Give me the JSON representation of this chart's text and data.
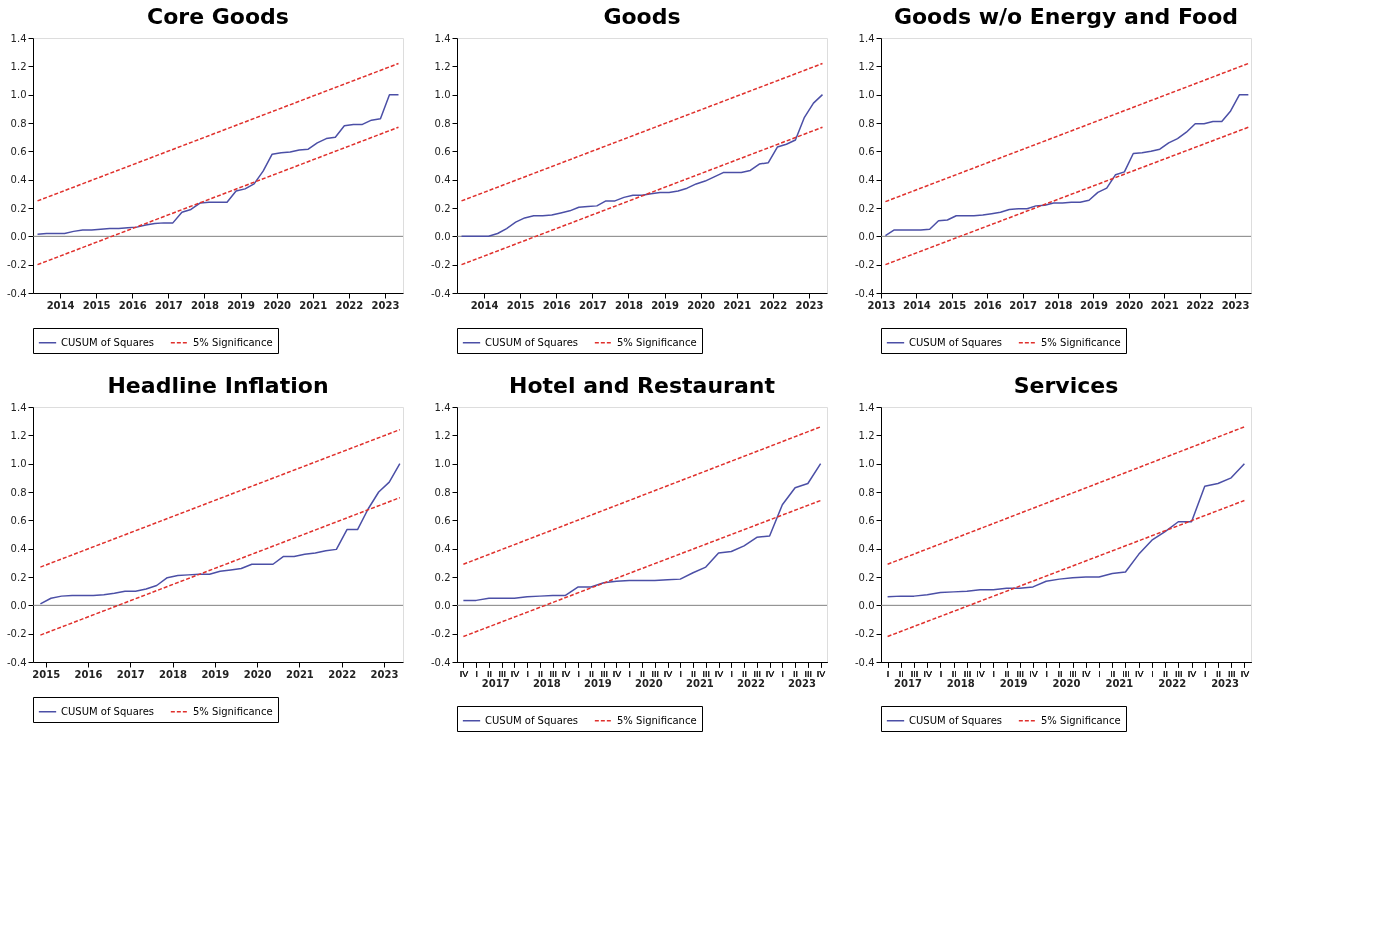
{
  "chart_data": [
    {
      "type": "line",
      "title": "Core Goods",
      "legend": "bottom",
      "grid": false,
      "marker": "none",
      "xlim": [
        2013.75,
        2024.0
      ],
      "ylim": [
        -0.4,
        1.4
      ],
      "xticks": [
        {
          "value": 2014.5,
          "label": "2014"
        },
        {
          "value": 2015.5,
          "label": "2015"
        },
        {
          "value": 2016.5,
          "label": "2016"
        },
        {
          "value": 2017.5,
          "label": "2017"
        },
        {
          "value": 2018.5,
          "label": "2018"
        },
        {
          "value": 2019.5,
          "label": "2019"
        },
        {
          "value": 2020.5,
          "label": "2020"
        },
        {
          "value": 2021.5,
          "label": "2021"
        },
        {
          "value": 2022.5,
          "label": "2022"
        },
        {
          "value": 2023.5,
          "label": "2023"
        }
      ],
      "yticks": [
        {
          "value": -0.4,
          "label": "-0.4"
        },
        {
          "value": -0.2,
          "label": "-0.2"
        },
        {
          "value": 0,
          "label": "0.0"
        },
        {
          "value": 0.2,
          "label": "0.2"
        },
        {
          "value": 0.4,
          "label": "0.4"
        },
        {
          "value": 0.6,
          "label": "0.6"
        },
        {
          "value": 0.8,
          "label": "0.8"
        },
        {
          "value": 1.0,
          "label": "1.0"
        },
        {
          "value": 1.2,
          "label": "1.2"
        },
        {
          "value": 1.4,
          "label": "1.4"
        }
      ],
      "x": [
        2013.875,
        2014.125,
        2014.375,
        2014.625,
        2014.875,
        2015.125,
        2015.375,
        2015.625,
        2015.875,
        2016.125,
        2016.375,
        2016.625,
        2016.875,
        2017.125,
        2017.375,
        2017.625,
        2017.875,
        2018.125,
        2018.375,
        2018.625,
        2018.875,
        2019.125,
        2019.375,
        2019.625,
        2019.875,
        2020.125,
        2020.375,
        2020.625,
        2020.875,
        2021.125,
        2021.375,
        2021.625,
        2021.875,
        2022.125,
        2022.375,
        2022.625,
        2022.875,
        2023.125,
        2023.375,
        2023.625,
        2023.875
      ],
      "ref_lines": [
        {
          "axis": "y",
          "value": 0,
          "color": "#808080"
        }
      ],
      "series": [
        {
          "name": "CUSUM of Squares",
          "color": "#4b4fa6",
          "line_style": "solid",
          "values": [
            0.015,
            0.02,
            0.02,
            0.02,
            0.035,
            0.045,
            0.045,
            0.05,
            0.055,
            0.055,
            0.06,
            0.065,
            0.08,
            0.09,
            0.095,
            0.095,
            0.17,
            0.19,
            0.235,
            0.24,
            0.24,
            0.24,
            0.32,
            0.335,
            0.37,
            0.46,
            0.58,
            0.59,
            0.595,
            0.61,
            0.615,
            0.66,
            0.69,
            0.7,
            0.78,
            0.79,
            0.79,
            0.82,
            0.83,
            1.0,
            1.0
          ]
        },
        {
          "name": "5% Significance",
          "color": "#e0302c",
          "line_style": "dashed",
          "x": [
            2013.875,
            2023.875
          ],
          "values": [
            0.25,
            1.22
          ]
        },
        {
          "color": "#e0302c",
          "line_style": "dashed",
          "x": [
            2013.875,
            2023.875
          ],
          "values": [
            -0.2,
            0.77
          ]
        }
      ]
    },
    {
      "type": "line",
      "title": "Goods",
      "legend": "bottom",
      "grid": false,
      "marker": "none",
      "xlim": [
        2013.75,
        2024.0
      ],
      "ylim": [
        -0.4,
        1.4
      ],
      "xticks": [
        {
          "value": 2014.5,
          "label": "2014"
        },
        {
          "value": 2015.5,
          "label": "2015"
        },
        {
          "value": 2016.5,
          "label": "2016"
        },
        {
          "value": 2017.5,
          "label": "2017"
        },
        {
          "value": 2018.5,
          "label": "2018"
        },
        {
          "value": 2019.5,
          "label": "2019"
        },
        {
          "value": 2020.5,
          "label": "2020"
        },
        {
          "value": 2021.5,
          "label": "2021"
        },
        {
          "value": 2022.5,
          "label": "2022"
        },
        {
          "value": 2023.5,
          "label": "2023"
        }
      ],
      "yticks": [
        {
          "value": -0.4,
          "label": "-0.4"
        },
        {
          "value": -0.2,
          "label": "-0.2"
        },
        {
          "value": 0,
          "label": "0.0"
        },
        {
          "value": 0.2,
          "label": "0.2"
        },
        {
          "value": 0.4,
          "label": "0.4"
        },
        {
          "value": 0.6,
          "label": "0.6"
        },
        {
          "value": 0.8,
          "label": "0.8"
        },
        {
          "value": 1.0,
          "label": "1.0"
        },
        {
          "value": 1.2,
          "label": "1.2"
        },
        {
          "value": 1.4,
          "label": "1.4"
        }
      ],
      "x": [
        2013.875,
        2014.125,
        2014.375,
        2014.625,
        2014.875,
        2015.125,
        2015.375,
        2015.625,
        2015.875,
        2016.125,
        2016.375,
        2016.625,
        2016.875,
        2017.125,
        2017.375,
        2017.625,
        2017.875,
        2018.125,
        2018.375,
        2018.625,
        2018.875,
        2019.125,
        2019.375,
        2019.625,
        2019.875,
        2020.125,
        2020.375,
        2020.625,
        2020.875,
        2021.125,
        2021.375,
        2021.625,
        2021.875,
        2022.125,
        2022.375,
        2022.625,
        2022.875,
        2023.125,
        2023.375,
        2023.625,
        2023.875
      ],
      "ref_lines": [
        {
          "axis": "y",
          "value": 0,
          "color": "#808080"
        }
      ],
      "series": [
        {
          "name": "CUSUM of Squares",
          "color": "#4b4fa6",
          "line_style": "solid",
          "values": [
            0,
            0,
            0,
            0,
            0.02,
            0.055,
            0.1,
            0.13,
            0.145,
            0.145,
            0.15,
            0.165,
            0.18,
            0.205,
            0.21,
            0.215,
            0.25,
            0.25,
            0.275,
            0.29,
            0.29,
            0.3,
            0.31,
            0.31,
            0.32,
            0.34,
            0.37,
            0.39,
            0.42,
            0.45,
            0.45,
            0.45,
            0.465,
            0.51,
            0.52,
            0.63,
            0.65,
            0.68,
            0.84,
            0.94,
            1.0
          ]
        },
        {
          "name": "5% Significance",
          "color": "#e0302c",
          "line_style": "dashed",
          "x": [
            2013.875,
            2023.875
          ],
          "values": [
            0.25,
            1.22
          ]
        },
        {
          "color": "#e0302c",
          "line_style": "dashed",
          "x": [
            2013.875,
            2023.875
          ],
          "values": [
            -0.2,
            0.77
          ]
        }
      ]
    },
    {
      "type": "line",
      "title": "Goods w/o Energy and Food",
      "legend": "bottom",
      "grid": false,
      "marker": "none",
      "xlim": [
        2013.5,
        2023.95
      ],
      "ylim": [
        -0.4,
        1.4
      ],
      "xticks": [
        {
          "value": 2013.5,
          "label": "2013"
        },
        {
          "value": 2014.5,
          "label": "2014"
        },
        {
          "value": 2015.5,
          "label": "2015"
        },
        {
          "value": 2016.5,
          "label": "2016"
        },
        {
          "value": 2017.5,
          "label": "2017"
        },
        {
          "value": 2018.5,
          "label": "2018"
        },
        {
          "value": 2019.5,
          "label": "2019"
        },
        {
          "value": 2020.5,
          "label": "2020"
        },
        {
          "value": 2021.5,
          "label": "2021"
        },
        {
          "value": 2022.5,
          "label": "2022"
        },
        {
          "value": 2023.5,
          "label": "2023"
        }
      ],
      "yticks": [
        {
          "value": -0.4,
          "label": "-0.4"
        },
        {
          "value": -0.2,
          "label": "-0.2"
        },
        {
          "value": 0,
          "label": "0.0"
        },
        {
          "value": 0.2,
          "label": "0.2"
        },
        {
          "value": 0.4,
          "label": "0.4"
        },
        {
          "value": 0.6,
          "label": "0.6"
        },
        {
          "value": 0.8,
          "label": "0.8"
        },
        {
          "value": 1.0,
          "label": "1.0"
        },
        {
          "value": 1.2,
          "label": "1.2"
        },
        {
          "value": 1.4,
          "label": "1.4"
        }
      ],
      "x": [
        2013.625,
        2013.875,
        2014.125,
        2014.375,
        2014.625,
        2014.875,
        2015.125,
        2015.375,
        2015.625,
        2015.875,
        2016.125,
        2016.375,
        2016.625,
        2016.875,
        2017.125,
        2017.375,
        2017.625,
        2017.875,
        2018.125,
        2018.375,
        2018.625,
        2018.875,
        2019.125,
        2019.375,
        2019.625,
        2019.875,
        2020.125,
        2020.375,
        2020.625,
        2020.875,
        2021.125,
        2021.375,
        2021.625,
        2021.875,
        2022.125,
        2022.375,
        2022.625,
        2022.875,
        2023.125,
        2023.375,
        2023.625,
        2023.875
      ],
      "ref_lines": [
        {
          "axis": "y",
          "value": 0,
          "color": "#808080"
        }
      ],
      "series": [
        {
          "name": "CUSUM of Squares",
          "color": "#4b4fa6",
          "line_style": "solid",
          "values": [
            0.005,
            0.045,
            0.045,
            0.045,
            0.045,
            0.05,
            0.11,
            0.115,
            0.145,
            0.145,
            0.145,
            0.15,
            0.16,
            0.17,
            0.19,
            0.195,
            0.195,
            0.215,
            0.22,
            0.235,
            0.235,
            0.24,
            0.24,
            0.255,
            0.31,
            0.34,
            0.435,
            0.455,
            0.585,
            0.59,
            0.6,
            0.615,
            0.66,
            0.69,
            0.735,
            0.795,
            0.795,
            0.81,
            0.81,
            0.885,
            1.0,
            1.0
          ]
        },
        {
          "name": "5% Significance",
          "color": "#e0302c",
          "line_style": "dashed",
          "x": [
            2013.625,
            2023.875
          ],
          "values": [
            0.245,
            1.22
          ]
        },
        {
          "color": "#e0302c",
          "line_style": "dashed",
          "x": [
            2013.625,
            2023.875
          ],
          "values": [
            -0.2,
            0.77
          ]
        }
      ]
    },
    {
      "type": "line",
      "title": "Headline Inflation",
      "legend": "bottom",
      "grid": false,
      "marker": "none",
      "xlim": [
        2015.2,
        2023.95
      ],
      "ylim": [
        -0.4,
        1.4
      ],
      "xticks": [
        {
          "value": 2015.5,
          "label": "2015"
        },
        {
          "value": 2016.5,
          "label": "2016"
        },
        {
          "value": 2017.5,
          "label": "2017"
        },
        {
          "value": 2018.5,
          "label": "2018"
        },
        {
          "value": 2019.5,
          "label": "2019"
        },
        {
          "value": 2020.5,
          "label": "2020"
        },
        {
          "value": 2021.5,
          "label": "2021"
        },
        {
          "value": 2022.5,
          "label": "2022"
        },
        {
          "value": 2023.5,
          "label": "2023"
        }
      ],
      "yticks": [
        {
          "value": -0.4,
          "label": "-0.4"
        },
        {
          "value": -0.2,
          "label": "-0.2"
        },
        {
          "value": 0,
          "label": "0.0"
        },
        {
          "value": 0.2,
          "label": "0.2"
        },
        {
          "value": 0.4,
          "label": "0.4"
        },
        {
          "value": 0.6,
          "label": "0.6"
        },
        {
          "value": 0.8,
          "label": "0.8"
        },
        {
          "value": 1.0,
          "label": "1.0"
        },
        {
          "value": 1.2,
          "label": "1.2"
        },
        {
          "value": 1.4,
          "label": "1.4"
        }
      ],
      "x": [
        2015.375,
        2015.625,
        2015.875,
        2016.125,
        2016.375,
        2016.625,
        2016.875,
        2017.125,
        2017.375,
        2017.625,
        2017.875,
        2018.125,
        2018.375,
        2018.625,
        2018.875,
        2019.125,
        2019.375,
        2019.625,
        2019.875,
        2020.125,
        2020.375,
        2020.625,
        2020.875,
        2021.125,
        2021.375,
        2021.625,
        2021.875,
        2022.125,
        2022.375,
        2022.625,
        2022.875,
        2023.125,
        2023.375,
        2023.625,
        2023.875
      ],
      "ref_lines": [
        {
          "axis": "y",
          "value": 0,
          "color": "#808080"
        }
      ],
      "series": [
        {
          "name": "CUSUM of Squares",
          "color": "#4b4fa6",
          "line_style": "solid",
          "values": [
            0.01,
            0.05,
            0.065,
            0.07,
            0.07,
            0.07,
            0.075,
            0.085,
            0.1,
            0.1,
            0.115,
            0.14,
            0.195,
            0.21,
            0.215,
            0.22,
            0.22,
            0.24,
            0.25,
            0.26,
            0.29,
            0.29,
            0.29,
            0.345,
            0.345,
            0.36,
            0.37,
            0.385,
            0.395,
            0.535,
            0.535,
            0.68,
            0.8,
            0.87,
            1.0
          ]
        },
        {
          "name": "5% Significance",
          "color": "#e0302c",
          "line_style": "dashed",
          "x": [
            2015.375,
            2023.875
          ],
          "values": [
            0.27,
            1.24
          ]
        },
        {
          "color": "#e0302c",
          "line_style": "dashed",
          "x": [
            2015.375,
            2023.875
          ],
          "values": [
            -0.21,
            0.76
          ]
        }
      ]
    },
    {
      "type": "line",
      "title": "Hotel and Restaurant",
      "legend": "bottom",
      "grid": false,
      "marker": "none",
      "xlim": [
        2016.75,
        2024.0
      ],
      "ylim": [
        -0.4,
        1.4
      ],
      "xticks": [
        {
          "value": 2017.5,
          "label": "2017"
        },
        {
          "value": 2018.5,
          "label": "2018"
        },
        {
          "value": 2019.5,
          "label": "2019"
        },
        {
          "value": 2020.5,
          "label": "2020"
        },
        {
          "value": 2021.5,
          "label": "2021"
        },
        {
          "value": 2022.5,
          "label": "2022"
        },
        {
          "value": 2023.5,
          "label": "2023"
        }
      ],
      "annotations": [
        "IV",
        "I",
        "II",
        "III",
        "IV",
        "I",
        "II",
        "III",
        "IV",
        "I",
        "II",
        "III",
        "IV",
        "I",
        "II",
        "III",
        "IV",
        "I",
        "II",
        "III",
        "IV",
        "I",
        "II",
        "III",
        "IV",
        "I",
        "II",
        "III",
        "IV"
      ],
      "yticks": [
        {
          "value": -0.4,
          "label": "-0.4"
        },
        {
          "value": -0.2,
          "label": "-0.2"
        },
        {
          "value": 0,
          "label": "0.0"
        },
        {
          "value": 0.2,
          "label": "0.2"
        },
        {
          "value": 0.4,
          "label": "0.4"
        },
        {
          "value": 0.6,
          "label": "0.6"
        },
        {
          "value": 0.8,
          "label": "0.8"
        },
        {
          "value": 1.0,
          "label": "1.0"
        },
        {
          "value": 1.2,
          "label": "1.2"
        },
        {
          "value": 1.4,
          "label": "1.4"
        }
      ],
      "x": [
        2016.875,
        2017.125,
        2017.375,
        2017.625,
        2017.875,
        2018.125,
        2018.375,
        2018.625,
        2018.875,
        2019.125,
        2019.375,
        2019.625,
        2019.875,
        2020.125,
        2020.375,
        2020.625,
        2020.875,
        2021.125,
        2021.375,
        2021.625,
        2021.875,
        2022.125,
        2022.375,
        2022.625,
        2022.875,
        2023.125,
        2023.375,
        2023.625,
        2023.875
      ],
      "ref_lines": [
        {
          "axis": "y",
          "value": 0,
          "color": "#808080"
        }
      ],
      "series": [
        {
          "name": "CUSUM of Squares",
          "color": "#4b4fa6",
          "line_style": "solid",
          "values": [
            0.035,
            0.035,
            0.05,
            0.05,
            0.05,
            0.06,
            0.065,
            0.07,
            0.07,
            0.13,
            0.13,
            0.16,
            0.17,
            0.175,
            0.175,
            0.175,
            0.18,
            0.185,
            0.23,
            0.27,
            0.37,
            0.38,
            0.42,
            0.48,
            0.49,
            0.71,
            0.83,
            0.86,
            1.0
          ]
        },
        {
          "name": "5% Significance",
          "color": "#e0302c",
          "line_style": "dashed",
          "x": [
            2016.875,
            2023.875
          ],
          "values": [
            0.29,
            1.26
          ]
        },
        {
          "color": "#e0302c",
          "line_style": "dashed",
          "x": [
            2016.875,
            2023.875
          ],
          "values": [
            -0.22,
            0.74
          ]
        }
      ]
    },
    {
      "type": "line",
      "title": "Services",
      "legend": "bottom",
      "grid": false,
      "marker": "none",
      "xlim": [
        2017.0,
        2024.0
      ],
      "ylim": [
        -0.4,
        1.4
      ],
      "xticks": [
        {
          "value": 2017.5,
          "label": "2017"
        },
        {
          "value": 2018.5,
          "label": "2018"
        },
        {
          "value": 2019.5,
          "label": "2019"
        },
        {
          "value": 2020.5,
          "label": "2020"
        },
        {
          "value": 2021.5,
          "label": "2021"
        },
        {
          "value": 2022.5,
          "label": "2022"
        },
        {
          "value": 2023.5,
          "label": "2023"
        }
      ],
      "annotations": [
        "I",
        "II",
        "III",
        "IV",
        "I",
        "II",
        "III",
        "IV",
        "I",
        "II",
        "III",
        "IV",
        "I",
        "II",
        "III",
        "IV",
        "I",
        "II",
        "III",
        "IV",
        "I",
        "II",
        "III",
        "IV",
        "I",
        "II",
        "III",
        "IV"
      ],
      "yticks": [
        {
          "value": -0.4,
          "label": "-0.4"
        },
        {
          "value": -0.2,
          "label": "-0.2"
        },
        {
          "value": 0,
          "label": "0.0"
        },
        {
          "value": 0.2,
          "label": "0.2"
        },
        {
          "value": 0.4,
          "label": "0.4"
        },
        {
          "value": 0.6,
          "label": "0.6"
        },
        {
          "value": 0.8,
          "label": "0.8"
        },
        {
          "value": 1.0,
          "label": "1.0"
        },
        {
          "value": 1.2,
          "label": "1.2"
        },
        {
          "value": 1.4,
          "label": "1.4"
        }
      ],
      "x": [
        2017.125,
        2017.375,
        2017.625,
        2017.875,
        2018.125,
        2018.375,
        2018.625,
        2018.875,
        2019.125,
        2019.375,
        2019.625,
        2019.875,
        2020.125,
        2020.375,
        2020.625,
        2020.875,
        2021.125,
        2021.375,
        2021.625,
        2021.875,
        2022.125,
        2022.375,
        2022.625,
        2022.875,
        2023.125,
        2023.375,
        2023.625,
        2023.875
      ],
      "ref_lines": [
        {
          "axis": "y",
          "value": 0,
          "color": "#808080"
        }
      ],
      "series": [
        {
          "name": "CUSUM of Squares",
          "color": "#4b4fa6",
          "line_style": "solid",
          "values": [
            0.06,
            0.065,
            0.065,
            0.075,
            0.09,
            0.095,
            0.1,
            0.11,
            0.11,
            0.12,
            0.12,
            0.13,
            0.17,
            0.185,
            0.195,
            0.2,
            0.2,
            0.225,
            0.235,
            0.36,
            0.46,
            0.52,
            0.59,
            0.59,
            0.84,
            0.86,
            0.9,
            1.0
          ]
        },
        {
          "name": "5% Significance",
          "color": "#e0302c",
          "line_style": "dashed",
          "x": [
            2017.125,
            2023.875
          ],
          "values": [
            0.29,
            1.26
          ]
        },
        {
          "color": "#e0302c",
          "line_style": "dashed",
          "x": [
            2017.125,
            2023.875
          ],
          "values": [
            -0.22,
            0.74
          ]
        }
      ]
    }
  ]
}
